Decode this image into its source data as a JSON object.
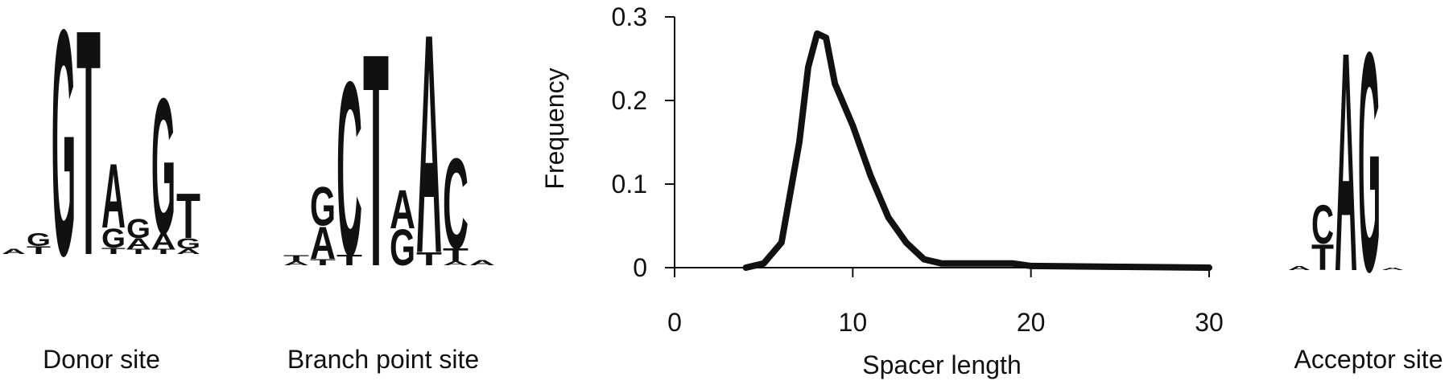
{
  "chart_data": {
    "type": "line",
    "x_label": "Spacer length",
    "y_label": "Frequency",
    "xlim": [
      0,
      30
    ],
    "ylim": [
      0,
      0.3
    ],
    "xticks": [
      0,
      10,
      20,
      30
    ],
    "yticks": [
      0,
      0.1,
      0.2,
      0.3
    ],
    "series": [
      {
        "color": "#111111",
        "x": [
          4,
          5,
          6,
          7,
          7.5,
          8,
          8.5,
          9,
          10,
          11,
          12,
          13,
          14,
          15,
          16,
          17,
          18,
          19,
          20,
          25,
          30
        ],
        "values": [
          0,
          0.005,
          0.03,
          0.15,
          0.24,
          0.28,
          0.275,
          0.22,
          0.17,
          0.11,
          0.06,
          0.03,
          0.01,
          0.005,
          0.005,
          0.005,
          0.005,
          0.005,
          0.002,
          0.001,
          0
        ]
      }
    ]
  },
  "logos": [
    {
      "label": "Donor site",
      "columns": [
        [
          [
            "A",
            0.04
          ]
        ],
        [
          [
            "G",
            0.1
          ],
          [
            "T",
            0.06
          ]
        ],
        [
          [
            "G",
            1.75
          ]
        ],
        [
          [
            "T",
            1.75
          ]
        ],
        [
          [
            "A",
            0.5
          ],
          [
            "G",
            0.15
          ],
          [
            "T",
            0.05
          ]
        ],
        [
          [
            "G",
            0.15
          ],
          [
            "A",
            0.08
          ],
          [
            "T",
            0.04
          ]
        ],
        [
          [
            "G",
            1.05
          ],
          [
            "A",
            0.12
          ],
          [
            "T",
            0.04
          ]
        ],
        [
          [
            "T",
            0.35
          ],
          [
            "G",
            0.08
          ],
          [
            "A",
            0.04
          ]
        ]
      ]
    },
    {
      "label": "Branch point site",
      "columns": [
        [
          [
            "T",
            0.05
          ],
          [
            "A",
            0.03
          ]
        ],
        [
          [
            "G",
            0.3
          ],
          [
            "A",
            0.25
          ],
          [
            "T",
            0.05
          ]
        ],
        [
          [
            "C",
            1.35
          ],
          [
            "T",
            0.08
          ]
        ],
        [
          [
            "T",
            1.65
          ]
        ],
        [
          [
            "A",
            0.3
          ],
          [
            "G",
            0.28
          ]
        ],
        [
          [
            "A",
            1.7
          ],
          [
            "T",
            0.1
          ]
        ],
        [
          [
            "C",
            0.7
          ],
          [
            "T",
            0.1
          ],
          [
            "A",
            0.03
          ]
        ],
        [
          [
            "A",
            0.04
          ]
        ]
      ]
    },
    {
      "label": "Acceptor site",
      "columns": [
        [
          [
            "A",
            0.03
          ]
        ],
        [
          [
            "C",
            0.3
          ],
          [
            "T",
            0.2
          ]
        ],
        [
          [
            "A",
            1.7
          ]
        ],
        [
          [
            "G",
            1.7
          ]
        ],
        [
          [
            "A",
            0.02
          ]
        ]
      ]
    }
  ]
}
